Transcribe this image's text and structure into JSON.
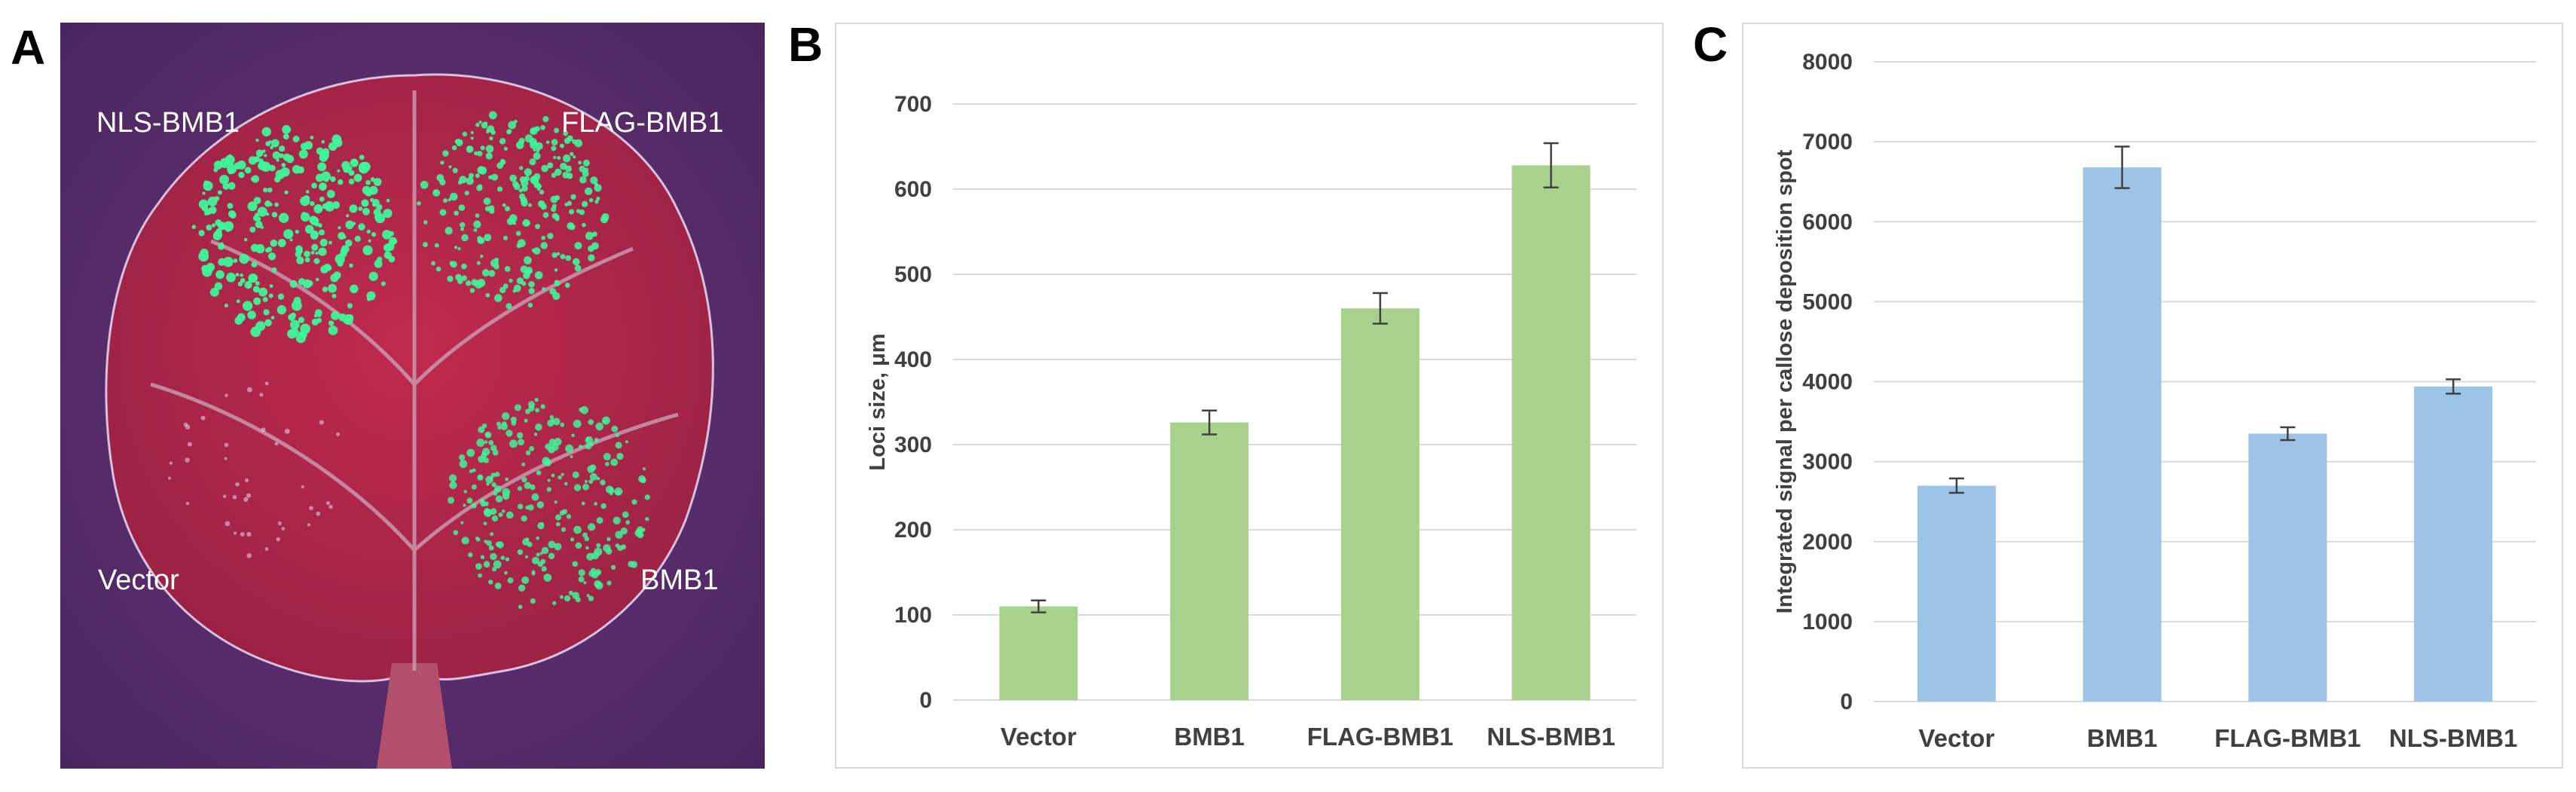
{
  "panel_letters": {
    "a": "A",
    "b": "B",
    "c": "C"
  },
  "photo": {
    "labels": {
      "top_left": "NLS-BMB1",
      "top_right": "FLAG-BMB1",
      "bottom_left": "Vector",
      "bottom_right": "BMB1"
    },
    "colors": {
      "background": "#5a2e6e",
      "leaf": "#b0284a",
      "spots": "#3df59a",
      "vein": "#c9a0b4"
    }
  },
  "chart_data": [
    {
      "type": "bar",
      "panel": "B",
      "categories": [
        "Vector",
        "BMB1",
        "FLAG-BMB1",
        "NLS-BMB1"
      ],
      "values": [
        110,
        326,
        460,
        628
      ],
      "errors": [
        7,
        14,
        18,
        26
      ],
      "ylabel": "Loci size, μm",
      "xlabel": "",
      "ylim": [
        0,
        700
      ],
      "yticks": [
        0,
        100,
        200,
        300,
        400,
        500,
        600,
        700
      ],
      "grid": true,
      "color": "#a9d18e"
    },
    {
      "type": "bar",
      "panel": "C",
      "categories": [
        "Vector",
        "BMB1",
        "FLAG-BMB1",
        "NLS-BMB1"
      ],
      "values": [
        2700,
        6680,
        3350,
        3940
      ],
      "errors": [
        90,
        260,
        80,
        90
      ],
      "ylabel": "Integrated signal per callose deposition spot",
      "xlabel": "",
      "ylim": [
        0,
        8000
      ],
      "yticks": [
        0,
        1000,
        2000,
        3000,
        4000,
        5000,
        6000,
        7000,
        8000
      ],
      "grid": true,
      "color": "#9dc3e6"
    }
  ]
}
